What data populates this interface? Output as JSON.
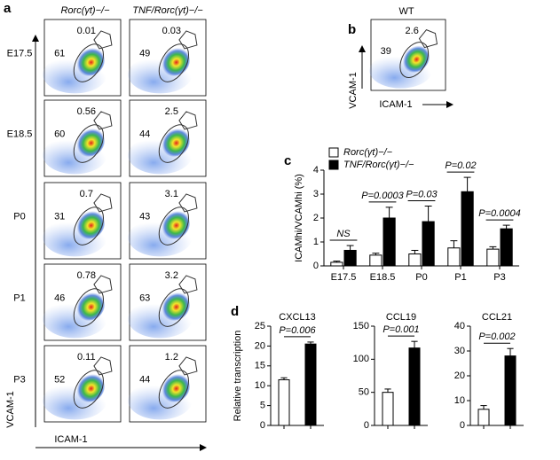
{
  "panel_labels": [
    "a",
    "b",
    "c",
    "d"
  ],
  "panel_a": {
    "columns": [
      "Rorc(γt)−/−",
      "TNF/Rorc(γt)−/−"
    ],
    "y_label": "VCAM-1",
    "x_label": "ICAM-1",
    "rows": [
      {
        "label": "E17.5",
        "plots": [
          {
            "hi": 0.01,
            "main": 61
          },
          {
            "hi": 0.03,
            "main": 49
          }
        ]
      },
      {
        "label": "E18.5",
        "plots": [
          {
            "hi": 0.56,
            "main": 60
          },
          {
            "hi": 2.5,
            "main": 44
          }
        ]
      },
      {
        "label": "P0",
        "plots": [
          {
            "hi": 0.7,
            "main": 31
          },
          {
            "hi": 3.1,
            "main": 43
          }
        ]
      },
      {
        "label": "P1",
        "plots": [
          {
            "hi": 0.78,
            "main": 46
          },
          {
            "hi": 3.2,
            "main": 63
          }
        ]
      },
      {
        "label": "P3",
        "plots": [
          {
            "hi": 0.11,
            "main": 52
          },
          {
            "hi": 1.2,
            "main": 44
          }
        ]
      }
    ]
  },
  "panel_b": {
    "title": "WT",
    "hi": 2.6,
    "main": 39,
    "y_label": "VCAM-1",
    "x_label": "ICAM-1"
  },
  "chart_data": [
    {
      "type": "bar",
      "y_label": "ICAMhi/VCAMhi (%)",
      "categories": [
        "E17.5",
        "E18.5",
        "P0",
        "P1",
        "P3"
      ],
      "series": [
        {
          "name": "Rorc(γt)−/−",
          "color": "#ffffff",
          "values": [
            0.15,
            0.45,
            0.5,
            0.75,
            0.7
          ],
          "errors": [
            0.05,
            0.08,
            0.15,
            0.3,
            0.1
          ]
        },
        {
          "name": "TNF/Rorc(γt)−/−",
          "color": "#000000",
          "values": [
            0.65,
            2.0,
            1.85,
            3.1,
            1.55
          ],
          "errors": [
            0.2,
            0.45,
            0.65,
            0.6,
            0.15
          ]
        }
      ],
      "annotations": [
        "NS",
        "P=0.0003",
        "P=0.03",
        "P=0.02",
        "P=0.0004"
      ],
      "ylim": [
        0,
        4
      ],
      "yticks": [
        0,
        1,
        2,
        3,
        4
      ]
    },
    {
      "type": "bar",
      "title": "CXCL13",
      "y_label": "Relative transcription",
      "categories": [
        null,
        null
      ],
      "series": [
        {
          "colors": [
            "#ffffff",
            "#000000"
          ],
          "values": [
            11.5,
            20.5
          ],
          "errors": [
            0.5,
            0.5
          ]
        }
      ],
      "annotation": "P=0.006",
      "ylim": [
        0,
        25
      ],
      "yticks": [
        0,
        5,
        10,
        15,
        20,
        25
      ]
    },
    {
      "type": "bar",
      "title": "CCL19",
      "categories": [
        null,
        null
      ],
      "series": [
        {
          "colors": [
            "#ffffff",
            "#000000"
          ],
          "values": [
            50,
            117
          ],
          "errors": [
            5,
            10
          ]
        }
      ],
      "annotation": "P=0.001",
      "ylim": [
        0,
        150
      ],
      "yticks": [
        0,
        50,
        100,
        150
      ]
    },
    {
      "type": "bar",
      "title": "CCL21",
      "categories": [
        null,
        null
      ],
      "series": [
        {
          "colors": [
            "#ffffff",
            "#000000"
          ],
          "values": [
            6.5,
            28
          ],
          "errors": [
            1.5,
            3
          ]
        }
      ],
      "annotation": "P=0.002",
      "ylim": [
        0,
        40
      ],
      "yticks": [
        0,
        10,
        20,
        30,
        40
      ]
    }
  ]
}
